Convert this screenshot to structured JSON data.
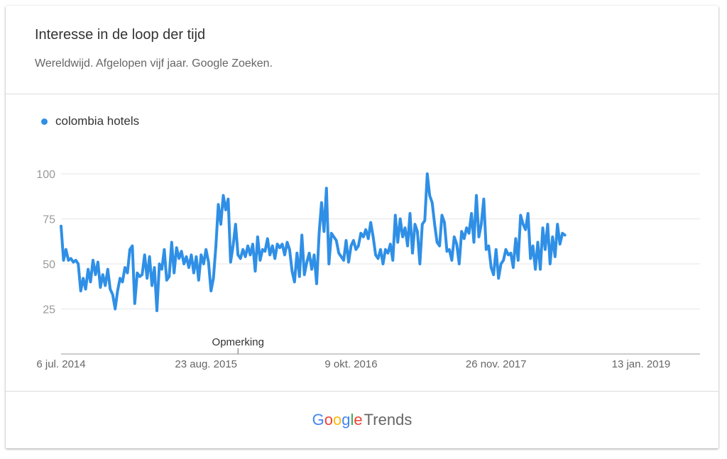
{
  "header": {
    "title": "Interesse in de loop der tijd",
    "subtitle": "Wereldwijd. Afgelopen vijf jaar. Google Zoeken."
  },
  "legend": {
    "label": "colombia hotels",
    "color": "#2f8fe6"
  },
  "annotation": {
    "label": "Opmerking",
    "x_date": "2015-11-22"
  },
  "footer": {
    "brand_letters": [
      "G",
      "o",
      "o",
      "g",
      "l",
      "e"
    ],
    "brand_colors": [
      "#4285f4",
      "#ea4335",
      "#fbbc05",
      "#4285f4",
      "#34a853",
      "#ea4335"
    ],
    "product": "Trends"
  },
  "chart_data": {
    "type": "line",
    "title": "Interesse in de loop der tijd",
    "subtitle": "Wereldwijd. Afgelopen vijf jaar. Google Zoeken.",
    "xlabel": "",
    "ylabel": "",
    "x_range": [
      "2014-07-06",
      "2019-06-30"
    ],
    "ylim": [
      0,
      100
    ],
    "y_ticks": [
      25,
      50,
      75,
      100
    ],
    "x_ticks": [
      {
        "label": "6 jul. 2014",
        "date": "2014-07-06"
      },
      {
        "label": "23 aug. 2015",
        "date": "2015-08-23"
      },
      {
        "label": "9 okt. 2016",
        "date": "2016-10-09"
      },
      {
        "label": "26 nov. 2017",
        "date": "2017-11-26"
      },
      {
        "label": "13 jan. 2019",
        "date": "2019-01-13"
      }
    ],
    "grid": true,
    "legend_position": "top-left",
    "series": [
      {
        "name": "colombia hotels",
        "color": "#2f8fe6",
        "points": [
          [
            "2014-07-06",
            71
          ],
          [
            "2014-07-13",
            52
          ],
          [
            "2014-07-20",
            58
          ],
          [
            "2014-07-27",
            52
          ],
          [
            "2014-08-03",
            53
          ],
          [
            "2014-08-10",
            51
          ],
          [
            "2014-08-17",
            52
          ],
          [
            "2014-08-24",
            50
          ],
          [
            "2014-08-31",
            35
          ],
          [
            "2014-09-07",
            42
          ],
          [
            "2014-09-14",
            36
          ],
          [
            "2014-09-21",
            47
          ],
          [
            "2014-09-28",
            40
          ],
          [
            "2014-10-05",
            52
          ],
          [
            "2014-10-12",
            44
          ],
          [
            "2014-10-19",
            51
          ],
          [
            "2014-10-26",
            37
          ],
          [
            "2014-11-02",
            44
          ],
          [
            "2014-11-09",
            38
          ],
          [
            "2014-11-16",
            47
          ],
          [
            "2014-11-23",
            36
          ],
          [
            "2014-11-30",
            33
          ],
          [
            "2014-12-07",
            25
          ],
          [
            "2014-12-14",
            35
          ],
          [
            "2014-12-21",
            42
          ],
          [
            "2014-12-28",
            40
          ],
          [
            "2015-01-04",
            48
          ],
          [
            "2015-01-11",
            45
          ],
          [
            "2015-01-18",
            58
          ],
          [
            "2015-01-25",
            60
          ],
          [
            "2015-02-01",
            28
          ],
          [
            "2015-02-08",
            45
          ],
          [
            "2015-02-15",
            43
          ],
          [
            "2015-02-22",
            44
          ],
          [
            "2015-03-01",
            55
          ],
          [
            "2015-03-08",
            42
          ],
          [
            "2015-03-15",
            54
          ],
          [
            "2015-03-22",
            38
          ],
          [
            "2015-03-29",
            48
          ],
          [
            "2015-04-05",
            24
          ],
          [
            "2015-04-12",
            50
          ],
          [
            "2015-04-19",
            47
          ],
          [
            "2015-04-26",
            58
          ],
          [
            "2015-05-03",
            41
          ],
          [
            "2015-05-10",
            43
          ],
          [
            "2015-05-17",
            62
          ],
          [
            "2015-05-24",
            45
          ],
          [
            "2015-05-31",
            59
          ],
          [
            "2015-06-07",
            53
          ],
          [
            "2015-06-14",
            57
          ],
          [
            "2015-06-21",
            50
          ],
          [
            "2015-06-28",
            54
          ],
          [
            "2015-07-05",
            48
          ],
          [
            "2015-07-12",
            55
          ],
          [
            "2015-07-19",
            45
          ],
          [
            "2015-07-26",
            54
          ],
          [
            "2015-08-02",
            41
          ],
          [
            "2015-08-09",
            55
          ],
          [
            "2015-08-16",
            50
          ],
          [
            "2015-08-23",
            58
          ],
          [
            "2015-08-30",
            51
          ],
          [
            "2015-09-06",
            35
          ],
          [
            "2015-09-13",
            42
          ],
          [
            "2015-09-20",
            60
          ],
          [
            "2015-09-27",
            83
          ],
          [
            "2015-10-04",
            72
          ],
          [
            "2015-10-11",
            88
          ],
          [
            "2015-10-18",
            80
          ],
          [
            "2015-10-25",
            86
          ],
          [
            "2015-11-01",
            51
          ],
          [
            "2015-11-08",
            60
          ],
          [
            "2015-11-15",
            72
          ],
          [
            "2015-11-22",
            55
          ],
          [
            "2015-11-29",
            53
          ],
          [
            "2015-12-06",
            58
          ],
          [
            "2015-12-13",
            54
          ],
          [
            "2015-12-20",
            60
          ],
          [
            "2015-12-27",
            55
          ],
          [
            "2016-01-03",
            61
          ],
          [
            "2016-01-10",
            46
          ],
          [
            "2016-01-17",
            65
          ],
          [
            "2016-01-24",
            52
          ],
          [
            "2016-01-31",
            58
          ],
          [
            "2016-02-07",
            57
          ],
          [
            "2016-02-14",
            64
          ],
          [
            "2016-02-21",
            55
          ],
          [
            "2016-02-28",
            60
          ],
          [
            "2016-03-06",
            53
          ],
          [
            "2016-03-13",
            61
          ],
          [
            "2016-03-20",
            59
          ],
          [
            "2016-03-27",
            61
          ],
          [
            "2016-04-03",
            55
          ],
          [
            "2016-04-10",
            62
          ],
          [
            "2016-04-17",
            58
          ],
          [
            "2016-04-24",
            46
          ],
          [
            "2016-05-01",
            40
          ],
          [
            "2016-05-08",
            56
          ],
          [
            "2016-05-15",
            43
          ],
          [
            "2016-05-22",
            66
          ],
          [
            "2016-05-29",
            44
          ],
          [
            "2016-06-05",
            51
          ],
          [
            "2016-06-12",
            56
          ],
          [
            "2016-06-19",
            47
          ],
          [
            "2016-06-26",
            55
          ],
          [
            "2016-07-03",
            39
          ],
          [
            "2016-07-10",
            67
          ],
          [
            "2016-07-17",
            84
          ],
          [
            "2016-07-24",
            68
          ],
          [
            "2016-07-31",
            92
          ],
          [
            "2016-08-07",
            50
          ],
          [
            "2016-08-14",
            67
          ],
          [
            "2016-08-21",
            65
          ],
          [
            "2016-08-28",
            63
          ],
          [
            "2016-09-04",
            56
          ],
          [
            "2016-09-11",
            54
          ],
          [
            "2016-09-18",
            52
          ],
          [
            "2016-09-25",
            63
          ],
          [
            "2016-10-02",
            51
          ],
          [
            "2016-10-09",
            60
          ],
          [
            "2016-10-16",
            63
          ],
          [
            "2016-10-23",
            58
          ],
          [
            "2016-10-30",
            60
          ],
          [
            "2016-11-06",
            67
          ],
          [
            "2016-11-13",
            65
          ],
          [
            "2016-11-20",
            69
          ],
          [
            "2016-11-27",
            64
          ],
          [
            "2016-12-04",
            73
          ],
          [
            "2016-12-11",
            65
          ],
          [
            "2016-12-18",
            55
          ],
          [
            "2016-12-25",
            53
          ],
          [
            "2017-01-01",
            58
          ],
          [
            "2017-01-08",
            50
          ],
          [
            "2017-01-15",
            58
          ],
          [
            "2017-01-22",
            56
          ],
          [
            "2017-01-29",
            61
          ],
          [
            "2017-02-05",
            52
          ],
          [
            "2017-02-12",
            77
          ],
          [
            "2017-02-19",
            62
          ],
          [
            "2017-02-26",
            75
          ],
          [
            "2017-03-05",
            65
          ],
          [
            "2017-03-12",
            70
          ],
          [
            "2017-03-19",
            60
          ],
          [
            "2017-03-26",
            78
          ],
          [
            "2017-04-02",
            56
          ],
          [
            "2017-04-09",
            72
          ],
          [
            "2017-04-16",
            68
          ],
          [
            "2017-04-23",
            50
          ],
          [
            "2017-04-30",
            72
          ],
          [
            "2017-05-07",
            74
          ],
          [
            "2017-05-14",
            100
          ],
          [
            "2017-05-21",
            88
          ],
          [
            "2017-05-28",
            84
          ],
          [
            "2017-06-04",
            72
          ],
          [
            "2017-06-11",
            62
          ],
          [
            "2017-06-18",
            60
          ],
          [
            "2017-06-25",
            77
          ],
          [
            "2017-07-02",
            73
          ],
          [
            "2017-07-09",
            57
          ],
          [
            "2017-07-16",
            58
          ],
          [
            "2017-07-23",
            52
          ],
          [
            "2017-07-30",
            65
          ],
          [
            "2017-08-06",
            61
          ],
          [
            "2017-08-13",
            50
          ],
          [
            "2017-08-20",
            68
          ],
          [
            "2017-08-27",
            64
          ],
          [
            "2017-09-03",
            70
          ],
          [
            "2017-09-10",
            67
          ],
          [
            "2017-09-17",
            78
          ],
          [
            "2017-09-24",
            62
          ],
          [
            "2017-10-01",
            88
          ],
          [
            "2017-10-08",
            65
          ],
          [
            "2017-10-15",
            72
          ],
          [
            "2017-10-22",
            86
          ],
          [
            "2017-10-29",
            58
          ],
          [
            "2017-11-05",
            60
          ],
          [
            "2017-11-12",
            48
          ],
          [
            "2017-11-19",
            44
          ],
          [
            "2017-11-26",
            58
          ],
          [
            "2017-12-03",
            42
          ],
          [
            "2017-12-10",
            50
          ],
          [
            "2017-12-17",
            52
          ],
          [
            "2017-12-24",
            58
          ],
          [
            "2017-12-31",
            55
          ],
          [
            "2018-01-07",
            56
          ],
          [
            "2018-01-14",
            48
          ],
          [
            "2018-01-21",
            64
          ],
          [
            "2018-01-28",
            52
          ],
          [
            "2018-02-04",
            77
          ],
          [
            "2018-02-11",
            72
          ],
          [
            "2018-02-18",
            69
          ],
          [
            "2018-02-25",
            78
          ],
          [
            "2018-03-04",
            53
          ],
          [
            "2018-03-11",
            60
          ],
          [
            "2018-03-18",
            47
          ],
          [
            "2018-03-25",
            62
          ],
          [
            "2018-04-01",
            47
          ],
          [
            "2018-04-08",
            70
          ],
          [
            "2018-04-15",
            58
          ],
          [
            "2018-04-22",
            72
          ],
          [
            "2018-04-29",
            50
          ],
          [
            "2018-05-06",
            65
          ],
          [
            "2018-05-13",
            54
          ],
          [
            "2018-05-20",
            72
          ],
          [
            "2018-05-27",
            61
          ],
          [
            "2018-06-03",
            67
          ],
          [
            "2018-06-10",
            66
          ]
        ]
      }
    ]
  }
}
